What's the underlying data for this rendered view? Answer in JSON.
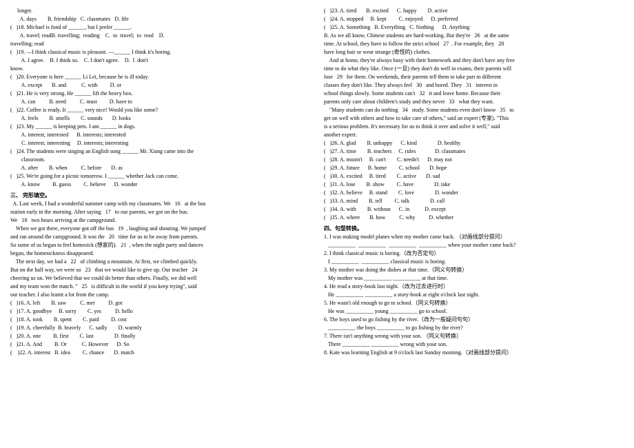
{
  "left": {
    "l1": "     longer.",
    "l2": "       A. days        B. friendship   C. classmates   D. life",
    "l3": "(   )18. Michael is fond of ______, but I prefer ______.",
    "l4": "       A. travel; readB. travelling;  reading    C.  to  travel;  to  read    D.",
    "l5": "travelling; read",
    "l6": "(   )19. —I think classical music is pleasant. —______ I think it's boring.",
    "l7": "        A. I agree.    B. I think so.    C. I don't agree.    D.  I  don't",
    "l8": "know.",
    "l9": "(   )20. Everyone is here ______ Li Lei, because he is ill today.",
    "l10": "        A. except       B. and           C. with         D. or",
    "l11": "(   )21. He is very strong. He ______ lift the heavy box.",
    "l12": "        A. can          B. need          C. must         D. have to",
    "l13": "(   )22. Coffee is ready. It ______ very nice! Would you like some?",
    "l14": "        A. feels        B. smells        C. sounds       D. looks",
    "l15": "(   )23. My ______ is keeping pets. I am ______ in dogs.",
    "l16": "        A. interest; interested      B. interests; interested",
    "l17": "        C. interest; interesting     D. interests; interesting",
    "l18": "(   )24. The students were singing an English song ______ Mr. Xiang came into the",
    "l19": "        classroom.",
    "l20": "        A. after        B. when          C. before       D. as",
    "l21": "(   )25. We're going for a picnic tomorrow. I ______ whether Jack can come.",
    "l22": "        A. know         B. guess         C. believe      D. wonder",
    "sec3": "三、 完形填空。",
    "pA1": "  A. Last week, I had a wonderful summer camp with my classmates. We   16   at the bus",
    "pA2": "station early in the morning. After saying   17   to our parents, we got on the bus.",
    "pA3": "We   18   two hours arriving at the campground.",
    "pA4": "    When we got there, everyone got off the bus   19  , laughing and shouting. We jumped",
    "pA5": "and ran around the campground. It was the   20   time for us to be away from parents.",
    "pA6": "So some of us began to feel homesick (想家的).   21  , when the night party and dances",
    "pA7": "began, the homesickness disappeared.",
    "pA8": "    The next day, we had a   22   of climbing a mountain. At first, we climbed quickly.",
    "pA9": "But on the half way, we were so   23   that we would like to give up. Our teacher   24  ",
    "pA10": "cheering us on. We believed that we could do better than others. Finally, we did well",
    "pA11": "and my team won the match. \"   25   is difficult in the world if you keep trying\", said",
    "pA12": "our teacher. I also learnt a lot from the camp.",
    "c16": "(   )16. A. left        B. saw          C. met          D. got",
    "c17": "(   )17. A. goodbye     B. sorry        C. yes          D. hello",
    "c18": "(   )18. A. took        B. spent        C. paid         D. cost",
    "c19": "(   )19. A. cheerfully  B. bravely      C. sadly        D. warmly",
    "c20": "(   )20. A. one         B. first        C. last               D. finally",
    "c21": "(   )21. A. And         B. Or           C. However      D. So",
    "c22": "(    )22. A. interest   B. idea         C. chance       D. match"
  },
  "right": {
    "c23": "(   )23. A. tired       B. excited      C. happy        D. active",
    "c24": "(   )24. A. stopped     B. kept         C. enjoyed      D. preferred",
    "c25": "(   )25. A. Something   B. Everything   C. Nothing      D. Anything",
    "pB1": "B. As we all know, Chinese students are hard-working. But they're   26   at the same",
    "pB2": "time. At school, they have to follow the strict school   27  . For example, they   28  ",
    "pB3": "have long hair or wear strange (奇怪的) clothes.",
    "pB4": "    And at home, they're always busy with their homework and they don't have any free",
    "pB5": "time to do what they like. Once (一旦) they don't do well in exams, their parents will",
    "pB6": "lose   29   for them. On weekends, their parents tell them to take part in different",
    "pB7": "classes they don't like. They always feel   30   and bored. They   31   interest in",
    "pB8": "school things slowly. Some students can't   32   it and leave home. Because their",
    "pB9": "parents only care about children's study and they never   33   what they want.",
    "pB10": "    \"Many students can do nothing   34   study. Some students even don't know   35   to",
    "pB11": "get on well with others and how to take care of others,\" said an expert (专家). \"This",
    "pB12": "is a serious problem. It's necessary for us to think it over and solve it well,\" said",
    "pB13": "another expert.",
    "b26": "(   )26. A. glad        B. unhappy      C. kind               D. healthy",
    "b27": "(   )27. A. time        B. teachers     C. rules              D. classmates",
    "b28": "(   )28. A. mustn't     B. can't        C. needn't      D. may not",
    "b29": "(   )29. A. future      B. home         C. school       D. hope",
    "b30": "(   )30. A. excited     B. tired        C. active       D. sad",
    "b31": "(   )31. A. lose        B. show         C. have               D. take",
    "b32": "(   )32. A. believe     B. stand        C. love               D. wonder",
    "b33": "(   )33. A. mind        B. tell         C. talk               D. call",
    "b34": "(   )34. A. with        B. without      C. in           D. except",
    "b35": "(   )35. A. where       B. how          C. why          D. whether",
    "sec4": "四、句型转换。",
    "q1a": "1. I was making model planes when my mother came back. （对画线部分提问）",
    "q1b": "   __________  __________  __________  __________ when your mother came back?",
    "q2a": "2. I think classical music is boring.（改为否定句）",
    "q2b": "   I __________  __________ classical music is boring.",
    "q3a": "3. My mother was doing the dishes at that time.（同义句转换）",
    "q3b": "   My mother was __________ __________ at that time.",
    "q4a": "4. He read a story-book last night.（改为过去进行时）",
    "q4b": "   He __________ __________ a story-book at eight o'clock last night.",
    "q5a": "5. He wasn't old enough to go to school.（同义句转换）",
    "q5b": "   He was __________ young __________ go to school.",
    "q6a": "6. The boys used to go fishing by the river.（改为一般疑问句句）",
    "q6b": "   __________ the boys __________ to go fishing by the river?",
    "q7a": "7. There isn't anything wrong with your son. （同义句转换）",
    "q7b": "   There __________ __________ wrong with your son.",
    "q8a": "8. Kate was learning English at 9 o'clock last Sunday morning.（对画线部分提问）"
  }
}
